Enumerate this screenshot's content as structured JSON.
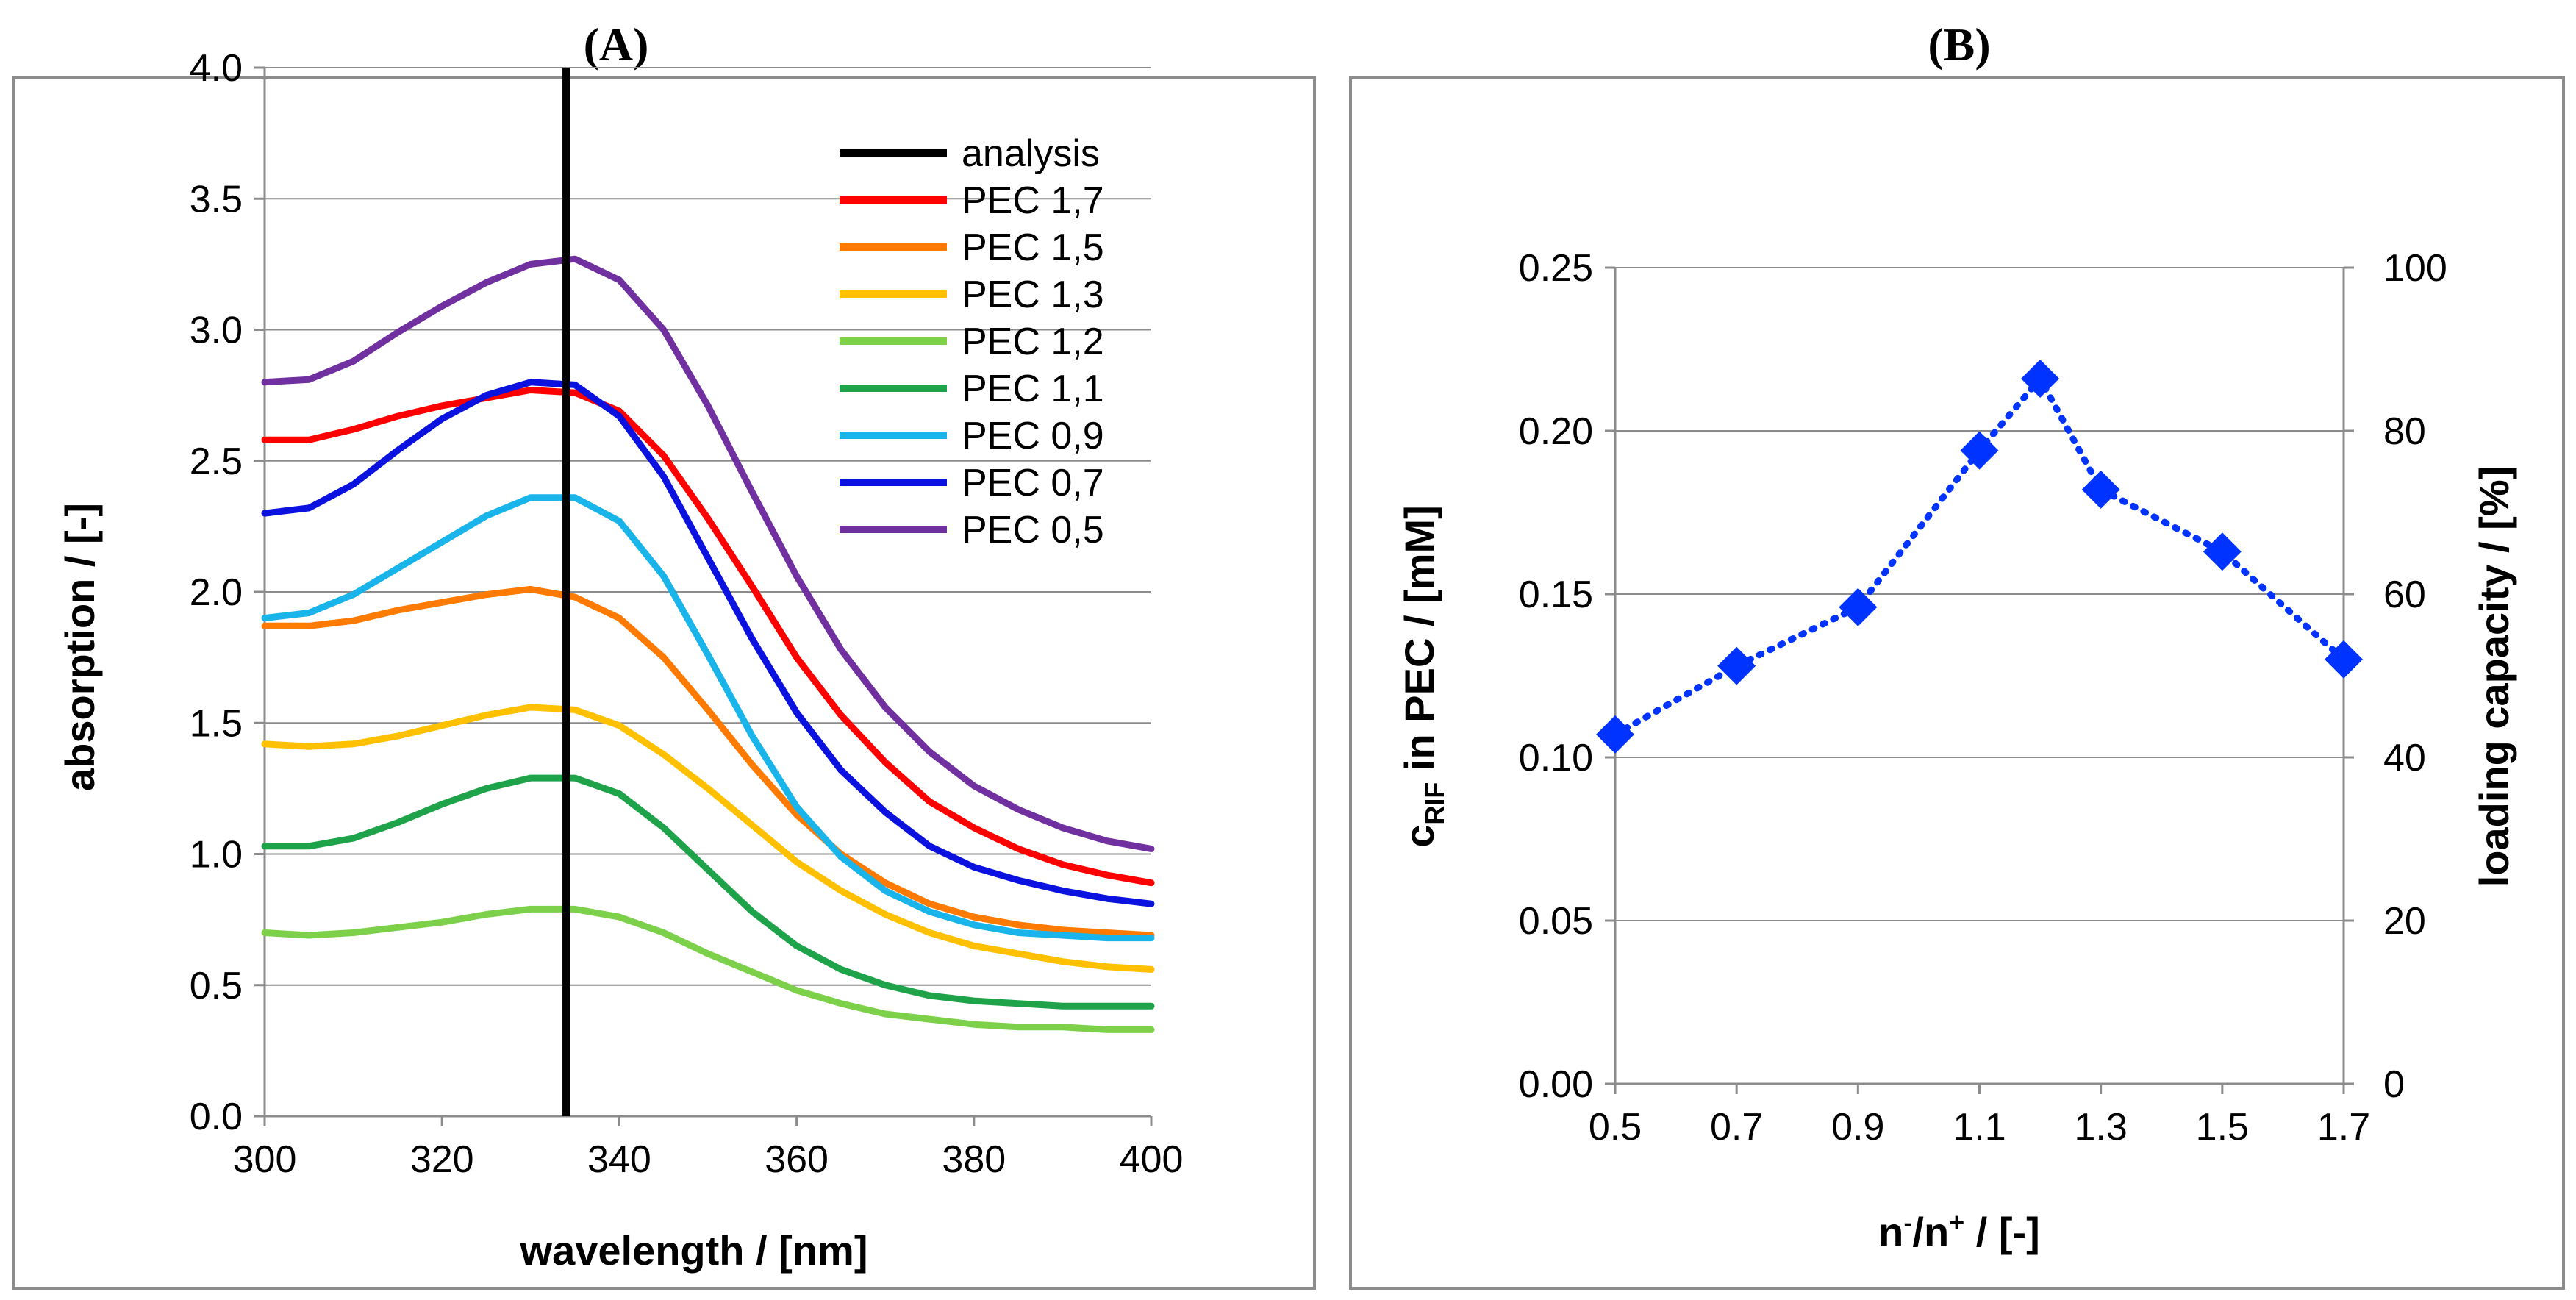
{
  "chart_data": [
    {
      "panel": "(A)",
      "type": "line",
      "title": "",
      "xlabel": "wavelength / [nm]",
      "ylabel": "absorption / [-]",
      "xlim": [
        300,
        400
      ],
      "ylim": [
        0,
        4
      ],
      "xticks": [
        "300",
        "320",
        "340",
        "360",
        "380",
        "400"
      ],
      "yticks": [
        "0.0",
        "0.5",
        "1.0",
        "1.5",
        "2.0",
        "2.5",
        "3.0",
        "3.5",
        "4.0"
      ],
      "grid": "horizontal",
      "legend_position": "top-right",
      "vline": {
        "name": "analysis",
        "x": 334,
        "y": [
          0,
          4
        ],
        "color": "#000000"
      },
      "x": [
        300,
        305,
        310,
        315,
        320,
        325,
        330,
        335,
        340,
        345,
        350,
        355,
        360,
        365,
        370,
        375,
        380,
        385,
        390,
        395,
        400
      ],
      "series": [
        {
          "name": "PEC 1,7",
          "color": "#ff0000",
          "values": [
            2.58,
            2.58,
            2.62,
            2.67,
            2.71,
            2.74,
            2.77,
            2.76,
            2.69,
            2.52,
            2.28,
            2.02,
            1.75,
            1.53,
            1.35,
            1.2,
            1.1,
            1.02,
            0.96,
            0.92,
            0.89
          ]
        },
        {
          "name": "PEC 1,5",
          "color": "#ff7a00",
          "values": [
            1.87,
            1.87,
            1.89,
            1.93,
            1.96,
            1.99,
            2.01,
            1.98,
            1.9,
            1.75,
            1.55,
            1.34,
            1.15,
            1.0,
            0.89,
            0.81,
            0.76,
            0.73,
            0.71,
            0.7,
            0.69
          ]
        },
        {
          "name": "PEC 1,3",
          "color": "#ffc000",
          "values": [
            1.42,
            1.41,
            1.42,
            1.45,
            1.49,
            1.53,
            1.56,
            1.55,
            1.49,
            1.38,
            1.25,
            1.11,
            0.97,
            0.86,
            0.77,
            0.7,
            0.65,
            0.62,
            0.59,
            0.57,
            0.56
          ]
        },
        {
          "name": "PEC 1,2",
          "color": "#7dd04a",
          "values": [
            0.7,
            0.69,
            0.7,
            0.72,
            0.74,
            0.77,
            0.79,
            0.79,
            0.76,
            0.7,
            0.62,
            0.55,
            0.48,
            0.43,
            0.39,
            0.37,
            0.35,
            0.34,
            0.34,
            0.33,
            0.33
          ]
        },
        {
          "name": "PEC 1,1",
          "color": "#1ea34a",
          "values": [
            1.03,
            1.03,
            1.06,
            1.12,
            1.19,
            1.25,
            1.29,
            1.29,
            1.23,
            1.1,
            0.94,
            0.78,
            0.65,
            0.56,
            0.5,
            0.46,
            0.44,
            0.43,
            0.42,
            0.42,
            0.42
          ]
        },
        {
          "name": "PEC 0,9",
          "color": "#19b4ea",
          "values": [
            1.9,
            1.92,
            1.99,
            2.09,
            2.19,
            2.29,
            2.36,
            2.36,
            2.27,
            2.06,
            1.76,
            1.45,
            1.18,
            0.99,
            0.86,
            0.78,
            0.73,
            0.7,
            0.69,
            0.68,
            0.68
          ]
        },
        {
          "name": "PEC 0,7",
          "color": "#0b12e0",
          "values": [
            2.3,
            2.32,
            2.41,
            2.54,
            2.66,
            2.75,
            2.8,
            2.79,
            2.67,
            2.44,
            2.13,
            1.82,
            1.54,
            1.32,
            1.16,
            1.03,
            0.95,
            0.9,
            0.86,
            0.83,
            0.81
          ]
        },
        {
          "name": "PEC 0,5",
          "color": "#7030a0",
          "values": [
            2.8,
            2.81,
            2.88,
            2.99,
            3.09,
            3.18,
            3.25,
            3.27,
            3.19,
            3.0,
            2.71,
            2.38,
            2.06,
            1.78,
            1.56,
            1.39,
            1.26,
            1.17,
            1.1,
            1.05,
            1.02
          ]
        }
      ]
    },
    {
      "panel": "(B)",
      "type": "scatter",
      "title": "",
      "xlabel_main": "n",
      "xlabel_sup1": "-",
      "xlabel_mid": "/n",
      "xlabel_sup2": "+",
      "xlabel_tail": " / [-]",
      "ylabel_main": "c",
      "ylabel_sub": "RIF",
      "ylabel_tail": " in PEC / [mM]",
      "y2label": "loading capacity / [%]",
      "xlim": [
        0.5,
        1.7
      ],
      "ylim": [
        0,
        0.25
      ],
      "y2lim": [
        0,
        100
      ],
      "xticks": [
        "0.5",
        "0.7",
        "0.9",
        "1.1",
        "1.3",
        "1.5",
        "1.7"
      ],
      "yticks": [
        "0.00",
        "0.05",
        "0.10",
        "0.15",
        "0.20",
        "0.25"
      ],
      "y2ticks": [
        "0",
        "20",
        "40",
        "60",
        "80",
        "100"
      ],
      "grid": "horizontal",
      "marker": "diamond",
      "line_style": "dotted",
      "color": "#0033ff",
      "x": [
        0.5,
        0.7,
        0.9,
        1.1,
        1.2,
        1.3,
        1.5,
        1.7
      ],
      "values": [
        0.107,
        0.128,
        0.146,
        0.194,
        0.216,
        0.182,
        0.163,
        0.13
      ]
    }
  ]
}
